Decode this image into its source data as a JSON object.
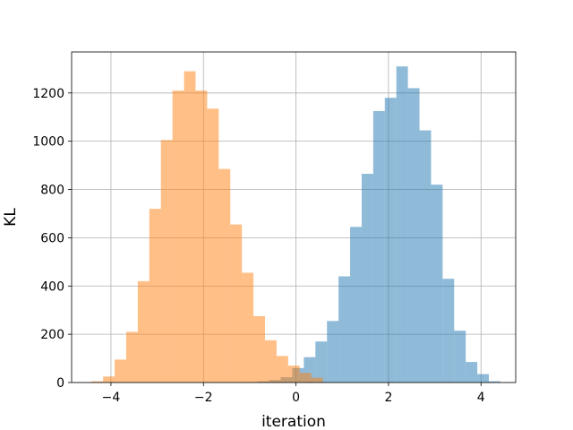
{
  "chart_data": {
    "type": "bar",
    "title": "",
    "xlabel": "iteration",
    "ylabel": "KL",
    "xlim": [
      -4.85,
      4.75
    ],
    "ylim": [
      0,
      1370
    ],
    "xticks": [
      -4,
      -2,
      0,
      2,
      4
    ],
    "yticks": [
      0,
      200,
      400,
      600,
      800,
      1000,
      1200
    ],
    "grid": true,
    "legend": "none",
    "series": [
      {
        "color": "#1f77b4",
        "alpha": 0.5,
        "bin_edges": [
          -1.08,
          -0.83,
          -0.58,
          -0.33,
          -0.08,
          0.17,
          0.42,
          0.67,
          0.92,
          1.17,
          1.42,
          1.67,
          1.92,
          2.17,
          2.42,
          2.67,
          2.92,
          3.17,
          3.42,
          3.67,
          3.92,
          4.17,
          4.42
        ],
        "counts": [
          2,
          5,
          10,
          22,
          60,
          105,
          170,
          255,
          440,
          645,
          865,
          1125,
          1180,
          1310,
          1220,
          1045,
          820,
          430,
          215,
          85,
          35,
          5
        ]
      },
      {
        "color": "#ff7f0e",
        "alpha": 0.5,
        "bin_edges": [
          -4.42,
          -4.17,
          -3.92,
          -3.67,
          -3.42,
          -3.17,
          -2.92,
          -2.67,
          -2.42,
          -2.17,
          -1.92,
          -1.67,
          -1.42,
          -1.17,
          -0.92,
          -0.67,
          -0.42,
          -0.17,
          0.08,
          0.33,
          0.58
        ],
        "counts": [
          5,
          25,
          95,
          210,
          420,
          720,
          1005,
          1210,
          1290,
          1210,
          1135,
          885,
          655,
          455,
          275,
          175,
          110,
          70,
          40,
          20
        ]
      }
    ]
  }
}
